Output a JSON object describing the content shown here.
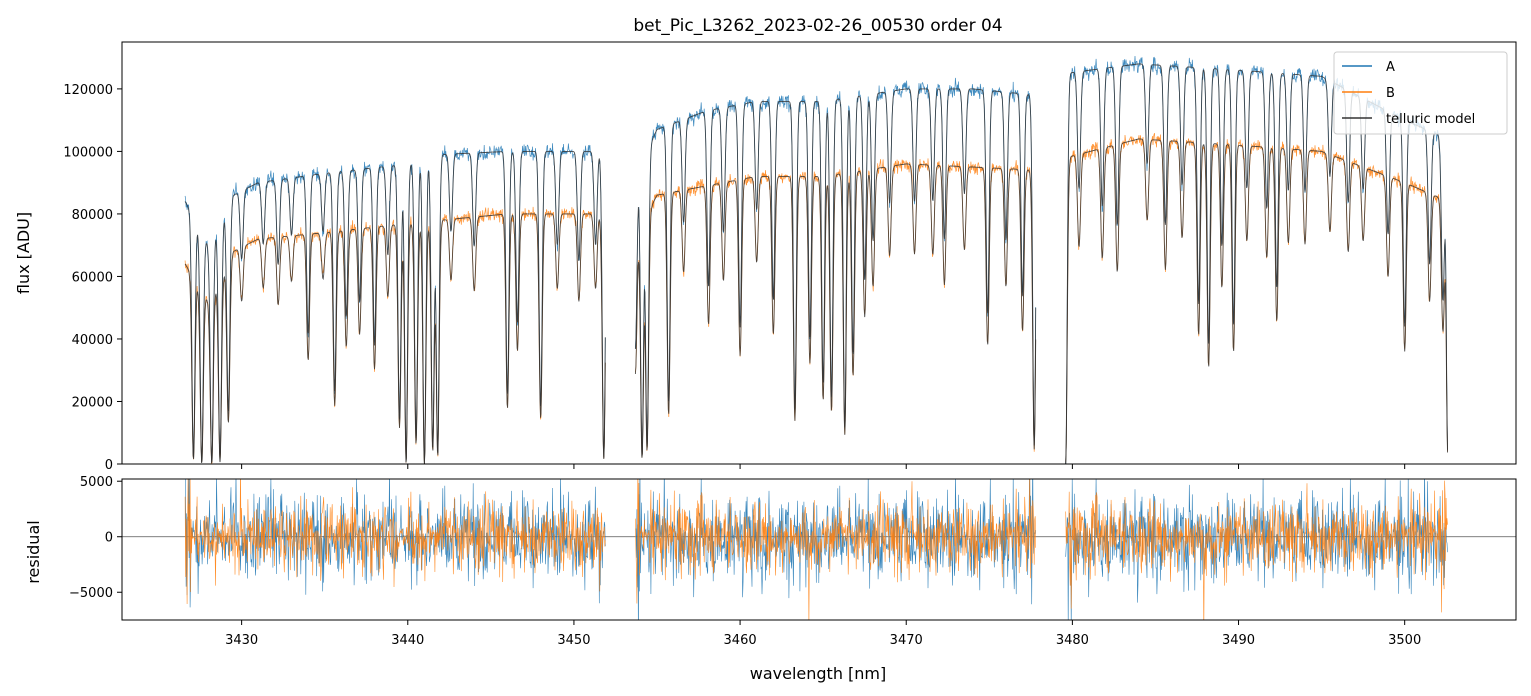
{
  "chart_data": [
    {
      "type": "line",
      "panel": "top",
      "title": "bet_Pic_L3262_2023-02-26_00530  order 04",
      "xlabel": "",
      "ylabel": "flux [ADU]",
      "xlim": [
        3422.8,
        3506.7
      ],
      "ylim": [
        0,
        135000
      ],
      "x_ticks": [
        3430,
        3440,
        3450,
        3460,
        3470,
        3480,
        3490,
        3500
      ],
      "y_ticks": [
        0,
        20000,
        40000,
        60000,
        80000,
        100000,
        120000
      ],
      "y_tick_labels": [
        "0",
        "20000",
        "40000",
        "60000",
        "80000",
        "100000",
        "120000"
      ],
      "legend": {
        "placement": "top-right",
        "entries": [
          {
            "label": "A",
            "color": "#1f77b4"
          },
          {
            "label": "B",
            "color": "#ff7f0e"
          },
          {
            "label": "telluric model",
            "color": "#333333"
          }
        ]
      },
      "segments": [
        {
          "x_start": 3426.6,
          "x_end": 3451.9
        },
        {
          "x_start": 3453.7,
          "x_end": 3477.8
        },
        {
          "x_start": 3479.6,
          "x_end": 3502.6
        }
      ],
      "series": [
        {
          "name": "A",
          "color": "#1f77b4",
          "continuum": [
            [
              3426.6,
              84000
            ],
            [
              3428.0,
              70000
            ],
            [
              3429.5,
              86000
            ],
            [
              3431.0,
              90000
            ],
            [
              3435.0,
              93000
            ],
            [
              3440.0,
              96000
            ],
            [
              3442.0,
              99000
            ],
            [
              3446.0,
              100000
            ],
            [
              3451.9,
              100000
            ],
            [
              3453.7,
              92000
            ],
            [
              3455.0,
              107000
            ],
            [
              3458.0,
              113000
            ],
            [
              3461.0,
              116000
            ],
            [
              3465.0,
              116000
            ],
            [
              3470.0,
              120000
            ],
            [
              3474.0,
              120000
            ],
            [
              3477.8,
              118000
            ],
            [
              3479.6,
              125000
            ],
            [
              3484.0,
              128000
            ],
            [
              3490.0,
              126000
            ],
            [
              3495.0,
              124000
            ],
            [
              3500.0,
              110000
            ],
            [
              3502.6,
              104000
            ]
          ]
        },
        {
          "name": "B",
          "color": "#ff7f0e",
          "continuum": [
            [
              3426.6,
              64000
            ],
            [
              3428.0,
              52000
            ],
            [
              3429.5,
              68000
            ],
            [
              3431.0,
              72000
            ],
            [
              3435.0,
              74000
            ],
            [
              3440.0,
              77000
            ],
            [
              3442.0,
              78000
            ],
            [
              3446.0,
              80000
            ],
            [
              3451.9,
              80000
            ],
            [
              3453.7,
              72000
            ],
            [
              3455.0,
              86000
            ],
            [
              3458.0,
              89000
            ],
            [
              3461.0,
              92000
            ],
            [
              3465.0,
              92000
            ],
            [
              3470.0,
              96000
            ],
            [
              3474.0,
              95000
            ],
            [
              3477.8,
              94000
            ],
            [
              3479.6,
              98000
            ],
            [
              3484.0,
              104000
            ],
            [
              3490.0,
              102000
            ],
            [
              3495.0,
              100000
            ],
            [
              3500.0,
              90000
            ],
            [
              3502.6,
              84000
            ]
          ]
        },
        {
          "name": "telluric model",
          "color": "#333333",
          "follows": [
            "A",
            "B"
          ]
        }
      ],
      "absorption_lines": [
        {
          "x": 3427.1,
          "depth": 0.98
        },
        {
          "x": 3427.6,
          "depth": 1.0
        },
        {
          "x": 3428.2,
          "depth": 1.0
        },
        {
          "x": 3428.7,
          "depth": 0.99
        },
        {
          "x": 3429.2,
          "depth": 0.8
        },
        {
          "x": 3430.0,
          "depth": 0.25
        },
        {
          "x": 3431.3,
          "depth": 0.22
        },
        {
          "x": 3432.2,
          "depth": 0.3
        },
        {
          "x": 3433.0,
          "depth": 0.2
        },
        {
          "x": 3434.0,
          "depth": 0.55
        },
        {
          "x": 3434.9,
          "depth": 0.2
        },
        {
          "x": 3435.6,
          "depth": 0.75
        },
        {
          "x": 3436.3,
          "depth": 0.5
        },
        {
          "x": 3437.1,
          "depth": 0.45
        },
        {
          "x": 3438.0,
          "depth": 0.6
        },
        {
          "x": 3438.8,
          "depth": 0.3
        },
        {
          "x": 3439.5,
          "depth": 0.85
        },
        {
          "x": 3439.9,
          "depth": 1.0
        },
        {
          "x": 3440.5,
          "depth": 0.92
        },
        {
          "x": 3441.0,
          "depth": 1.0
        },
        {
          "x": 3441.5,
          "depth": 0.95
        },
        {
          "x": 3441.8,
          "depth": 0.97
        },
        {
          "x": 3442.6,
          "depth": 0.25
        },
        {
          "x": 3444.0,
          "depth": 0.3
        },
        {
          "x": 3446.0,
          "depth": 0.78
        },
        {
          "x": 3446.6,
          "depth": 0.55
        },
        {
          "x": 3448.0,
          "depth": 0.82
        },
        {
          "x": 3449.0,
          "depth": 0.3
        },
        {
          "x": 3450.3,
          "depth": 0.35
        },
        {
          "x": 3451.3,
          "depth": 0.3
        },
        {
          "x": 3451.8,
          "depth": 0.98
        },
        {
          "x": 3453.7,
          "depth": 0.6
        },
        {
          "x": 3454.1,
          "depth": 0.98
        },
        {
          "x": 3454.4,
          "depth": 0.95
        },
        {
          "x": 3455.7,
          "depth": 0.82
        },
        {
          "x": 3456.6,
          "depth": 0.3
        },
        {
          "x": 3458.1,
          "depth": 0.5
        },
        {
          "x": 3459.0,
          "depth": 0.35
        },
        {
          "x": 3460.0,
          "depth": 0.62
        },
        {
          "x": 3461.0,
          "depth": 0.3
        },
        {
          "x": 3462.0,
          "depth": 0.55
        },
        {
          "x": 3463.3,
          "depth": 0.85
        },
        {
          "x": 3464.2,
          "depth": 0.65
        },
        {
          "x": 3465.0,
          "depth": 0.78
        },
        {
          "x": 3465.5,
          "depth": 0.82
        },
        {
          "x": 3466.3,
          "depth": 0.9
        },
        {
          "x": 3466.8,
          "depth": 0.7
        },
        {
          "x": 3467.5,
          "depth": 0.5
        },
        {
          "x": 3468.0,
          "depth": 0.4
        },
        {
          "x": 3469.0,
          "depth": 0.3
        },
        {
          "x": 3470.5,
          "depth": 0.3
        },
        {
          "x": 3471.6,
          "depth": 0.3
        },
        {
          "x": 3472.3,
          "depth": 0.4
        },
        {
          "x": 3473.5,
          "depth": 0.28
        },
        {
          "x": 3474.9,
          "depth": 0.6
        },
        {
          "x": 3476.0,
          "depth": 0.4
        },
        {
          "x": 3477.0,
          "depth": 0.55
        },
        {
          "x": 3477.7,
          "depth": 0.95
        },
        {
          "x": 3479.6,
          "depth": 1.0
        },
        {
          "x": 3480.4,
          "depth": 0.3
        },
        {
          "x": 3481.8,
          "depth": 0.35
        },
        {
          "x": 3482.7,
          "depth": 0.4
        },
        {
          "x": 3484.5,
          "depth": 0.25
        },
        {
          "x": 3485.6,
          "depth": 0.4
        },
        {
          "x": 3486.6,
          "depth": 0.3
        },
        {
          "x": 3487.6,
          "depth": 0.6
        },
        {
          "x": 3488.2,
          "depth": 0.7
        },
        {
          "x": 3489.0,
          "depth": 0.45
        },
        {
          "x": 3489.7,
          "depth": 0.65
        },
        {
          "x": 3490.5,
          "depth": 0.3
        },
        {
          "x": 3491.7,
          "depth": 0.35
        },
        {
          "x": 3492.3,
          "depth": 0.55
        },
        {
          "x": 3493.0,
          "depth": 0.3
        },
        {
          "x": 3494.0,
          "depth": 0.3
        },
        {
          "x": 3495.5,
          "depth": 0.25
        },
        {
          "x": 3496.6,
          "depth": 0.3
        },
        {
          "x": 3497.5,
          "depth": 0.25
        },
        {
          "x": 3499.0,
          "depth": 0.35
        },
        {
          "x": 3500.0,
          "depth": 0.6
        },
        {
          "x": 3501.5,
          "depth": 0.4
        },
        {
          "x": 3502.3,
          "depth": 0.5
        },
        {
          "x": 3502.6,
          "depth": 0.98
        }
      ]
    },
    {
      "type": "line",
      "panel": "bottom",
      "xlabel": "wavelength [nm]",
      "ylabel": "residual",
      "xlim": [
        3422.8,
        3506.7
      ],
      "ylim": [
        -7500,
        5200
      ],
      "x_ticks": [
        3430,
        3440,
        3450,
        3460,
        3470,
        3480,
        3490,
        3500
      ],
      "y_ticks": [
        -5000,
        0,
        5000
      ],
      "y_tick_labels": [
        "−5000",
        "0",
        "5000"
      ],
      "zero_line": 0,
      "series": [
        {
          "name": "A",
          "color": "#1f77b4",
          "typical_scatter": [
            -3000,
            3000
          ]
        },
        {
          "name": "B",
          "color": "#ff7f0e",
          "typical_scatter": [
            -2500,
            2500
          ]
        }
      ]
    }
  ]
}
